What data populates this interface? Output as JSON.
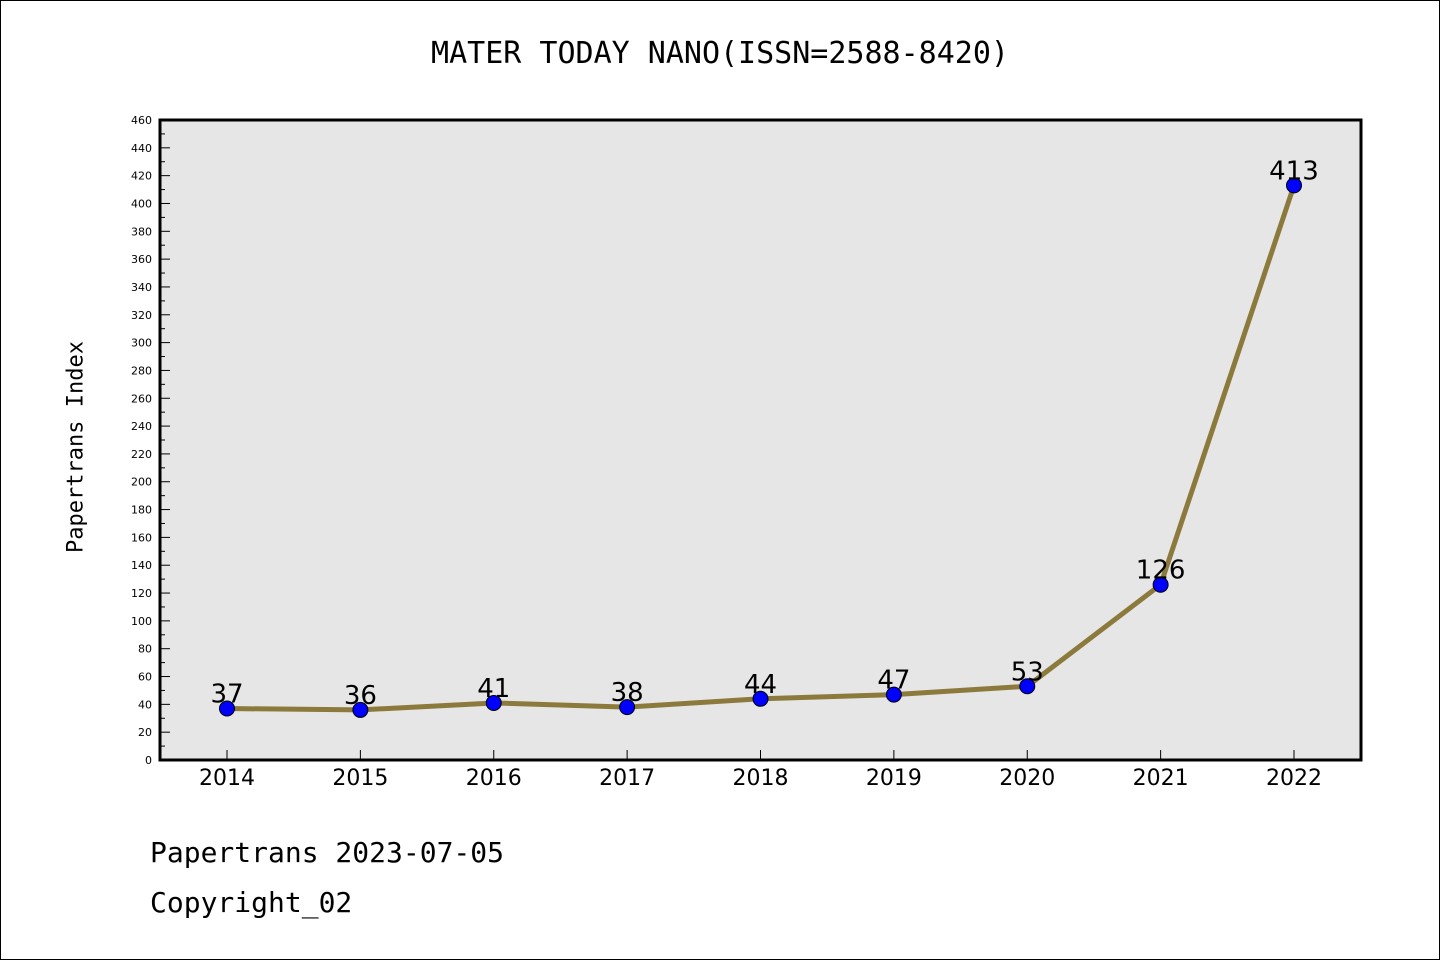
{
  "chart_data": {
    "type": "line",
    "title": "MATER TODAY NANO(ISSN=2588-8420)",
    "xlabel": "",
    "ylabel": "Papertrans Index",
    "categories": [
      "2014",
      "2015",
      "2016",
      "2017",
      "2018",
      "2019",
      "2020",
      "2021",
      "2022"
    ],
    "series": [
      {
        "values": [
          37,
          36,
          41,
          38,
          44,
          47,
          53,
          126,
          413
        ]
      }
    ],
    "ylim": [
      0,
      460
    ],
    "ytick_step": 20,
    "grid": false,
    "legend": "none",
    "colors": {
      "line": "#8c7a3c",
      "marker": "#0000ff",
      "plot_background": "#e6e6e6"
    }
  },
  "footer": {
    "line1": "Papertrans 2023-07-05",
    "line2": "Copyright_02"
  }
}
